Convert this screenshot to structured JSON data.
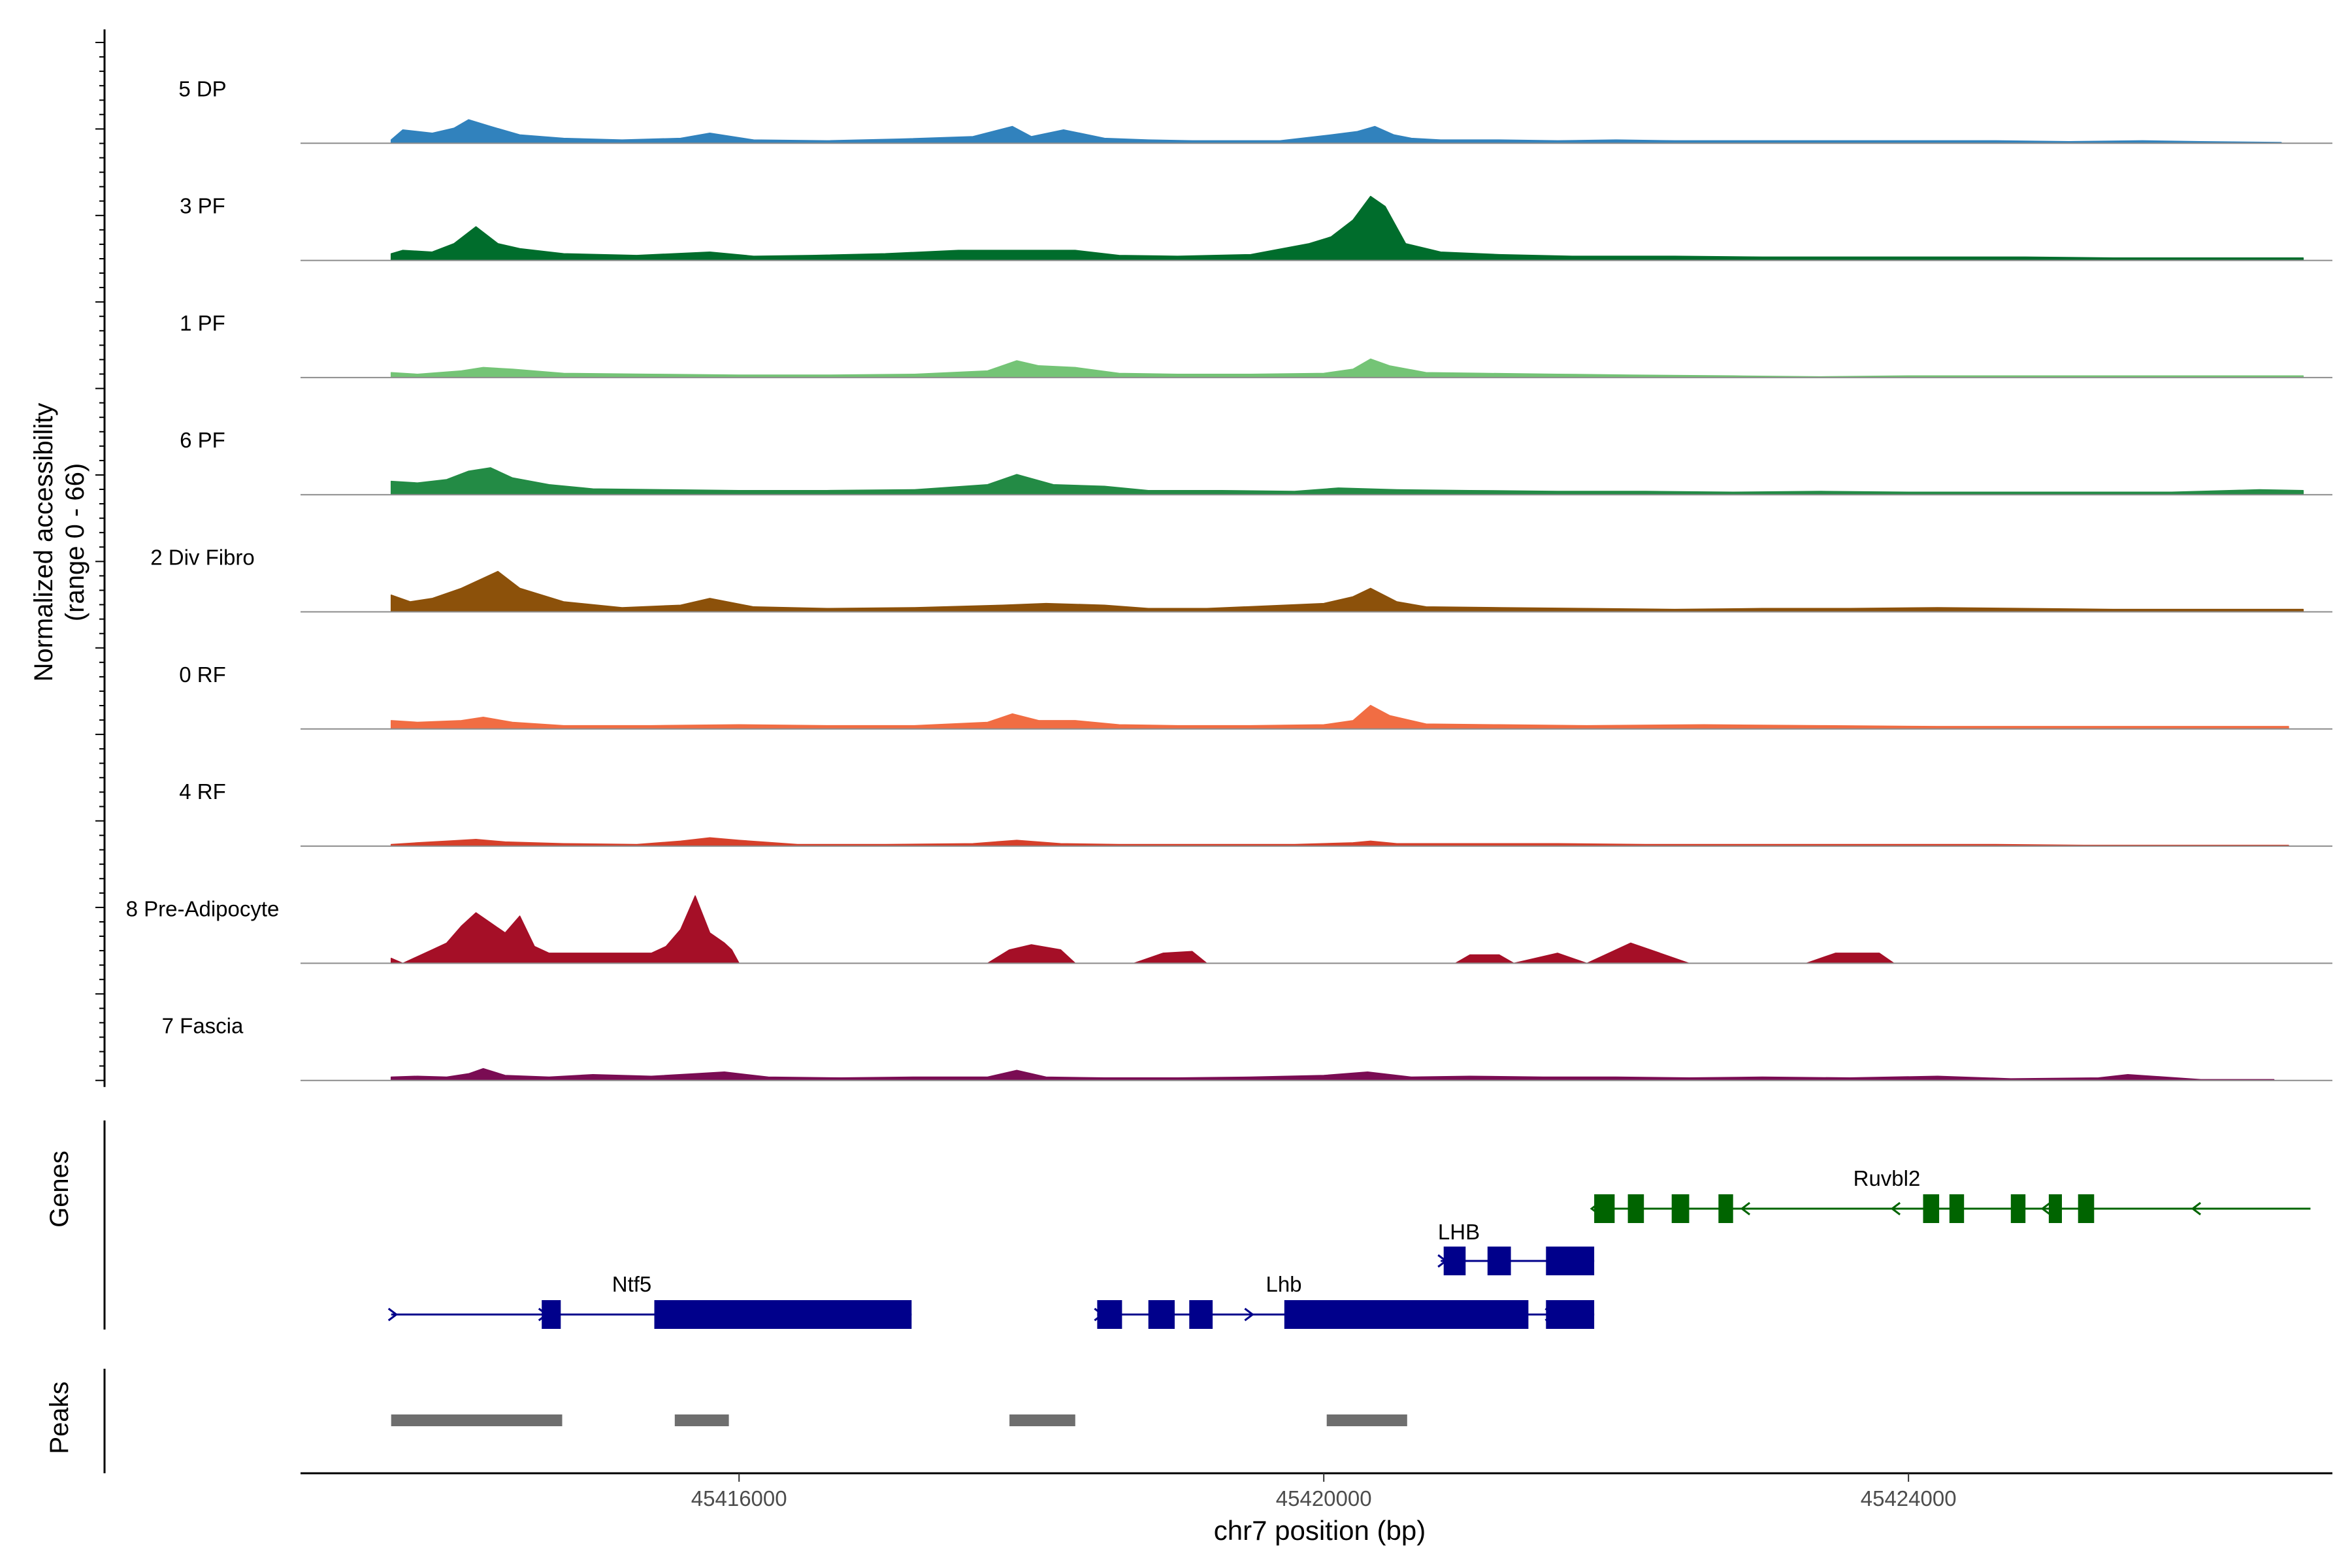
{
  "chart_data": {
    "type": "area",
    "title": "",
    "ylabel_line1": "Normalized accessibility",
    "ylabel_line2": "(range 0 - 66)",
    "xlabel": "chr7 position (bp)",
    "xlim": [
      45413000,
      45426900
    ],
    "ylim": [
      0,
      66
    ],
    "xticks": [
      45416000,
      45420000,
      45424000
    ],
    "xtick_labels": [
      "45416000",
      "45420000",
      "45424000"
    ],
    "grid": false,
    "series": [
      {
        "name": "5 DP",
        "color": "#3182bd",
        "x": [
          45413620,
          45413700,
          45413900,
          45414050,
          45414150,
          45414300,
          45414500,
          45414800,
          45415200,
          45415600,
          45415800,
          45416100,
          45416600,
          45417100,
          45417600,
          45417870,
          45418000,
          45418220,
          45418500,
          45418800,
          45419100,
          45419400,
          45419700,
          45420050,
          45420230,
          45420350,
          45420480,
          45420600,
          45420800,
          45421200,
          45421600,
          45422000,
          45422400,
          45422800,
          45423400,
          45424000,
          45424600,
          45425100,
          45425600,
          45426000,
          45426550
        ],
        "values": [
          2,
          8,
          6,
          9,
          14,
          10,
          5,
          3,
          2,
          3,
          6,
          2,
          1.5,
          2.5,
          4,
          10,
          4,
          8,
          3,
          2,
          1.5,
          1.5,
          1.5,
          5,
          7,
          10,
          5,
          3,
          2,
          2,
          1.5,
          2,
          1.5,
          1.5,
          1.5,
          1.5,
          1.5,
          1,
          1.5,
          1,
          0.5
        ]
      },
      {
        "name": "3 PF",
        "color": "#006d2c",
        "x": [
          45413620,
          45413700,
          45413900,
          45414050,
          45414200,
          45414350,
          45414500,
          45414800,
          45415300,
          45415800,
          45416100,
          45416500,
          45417000,
          45417500,
          45417900,
          45418300,
          45418600,
          45419000,
          45419500,
          45419900,
          45420050,
          45420200,
          45420320,
          45420420,
          45420560,
          45420800,
          45421200,
          45421700,
          45422400,
          45423000,
          45423600,
          45424200,
          45424800,
          45425400,
          45426000,
          45426600,
          45426700
        ],
        "values": [
          4,
          6,
          5,
          10,
          20,
          10,
          7,
          4,
          3,
          5,
          2.5,
          3,
          4,
          6,
          6,
          6,
          3,
          2.5,
          3.5,
          10,
          14,
          24,
          38,
          32,
          10,
          5,
          3.5,
          2.5,
          2.5,
          2,
          2,
          2,
          2,
          1.5,
          1.5,
          1.5,
          1.5
        ]
      },
      {
        "name": "1 PF",
        "color": "#74c476",
        "x": [
          45413620,
          45413800,
          45414100,
          45414250,
          45414450,
          45414800,
          45415400,
          45416000,
          45416600,
          45417200,
          45417700,
          45417900,
          45418050,
          45418300,
          45418600,
          45419000,
          45419500,
          45420000,
          45420200,
          45420320,
          45420450,
          45420700,
          45421100,
          45421600,
          45422100,
          45422800,
          45423400,
          45424000,
          45424700,
          45425400,
          45426100,
          45426700
        ],
        "values": [
          3,
          2,
          4,
          6,
          5,
          2.5,
          2,
          1.5,
          1.5,
          2,
          4,
          10,
          7,
          6,
          2.5,
          2,
          2,
          2.5,
          5,
          11,
          7,
          3,
          2.5,
          2,
          1.5,
          1,
          0.5,
          1,
          1,
          1,
          1,
          1
        ]
      },
      {
        "name": "6 PF",
        "color": "#238b45",
        "x": [
          45413620,
          45413800,
          45414000,
          45414150,
          45414300,
          45414450,
          45414700,
          45415000,
          45415500,
          45416000,
          45416600,
          45417200,
          45417700,
          45417900,
          45418150,
          45418500,
          45418800,
          45419300,
          45419800,
          45420100,
          45420500,
          45421000,
          45421600,
          45422200,
          45422800,
          45423400,
          45424000,
          45424600,
          45425200,
          45425800,
          45426400,
          45426700
        ],
        "values": [
          8,
          7,
          9,
          14,
          16,
          10,
          6,
          3.5,
          3,
          2.5,
          2.5,
          3,
          6,
          12,
          6,
          5,
          2.5,
          2.5,
          2,
          4,
          3,
          2.5,
          2,
          2,
          1.5,
          2,
          1.5,
          1.5,
          1.5,
          1.5,
          3,
          2.5
        ]
      },
      {
        "name": "2 Div Fibro",
        "color": "#8c510a",
        "x": [
          45413620,
          45413750,
          45413900,
          45414100,
          45414250,
          45414350,
          45414500,
          45414800,
          45415200,
          45415600,
          45415800,
          45416100,
          45416600,
          45417200,
          45417800,
          45418100,
          45418500,
          45418800,
          45419200,
          45419600,
          45420000,
          45420200,
          45420320,
          45420500,
          45420700,
          45421200,
          45421800,
          45422400,
          45423000,
          45423600,
          45424200,
          45424800,
          45425400,
          45426000,
          45426700
        ],
        "values": [
          10,
          6,
          8,
          14,
          20,
          24,
          14,
          6,
          2.5,
          4,
          8,
          3,
          2,
          2.5,
          4,
          5,
          4,
          2,
          2,
          3.5,
          5,
          9,
          14,
          6,
          3,
          2.5,
          2,
          1.5,
          2,
          2,
          2.5,
          2,
          1.5,
          1.5,
          1.5
        ]
      },
      {
        "name": "0 RF",
        "color": "#f16d43",
        "x": [
          45413620,
          45413800,
          45414100,
          45414250,
          45414450,
          45414800,
          45415400,
          45416000,
          45416600,
          45417200,
          45417700,
          45417870,
          45418050,
          45418300,
          45418600,
          45419000,
          45419500,
          45420000,
          45420200,
          45420320,
          45420450,
          45420700,
          45421200,
          45421800,
          45422600,
          45423400,
          45424200,
          45425000,
          45425800,
          45426600
        ],
        "values": [
          5,
          4,
          5,
          7,
          4,
          2,
          2,
          2.5,
          2,
          2,
          4,
          9,
          5,
          5,
          2.5,
          2,
          2,
          2.5,
          5,
          14,
          8,
          3,
          2.5,
          2,
          2.5,
          2,
          1.5,
          1.5,
          1.5,
          1.5
        ]
      },
      {
        "name": "4 RF",
        "color": "#d6402a",
        "x": [
          45413620,
          45413800,
          45414000,
          45414200,
          45414400,
          45414800,
          45415300,
          45415600,
          45415800,
          45416000,
          45416400,
          45417000,
          45417600,
          45417900,
          45418200,
          45418600,
          45419200,
          45419800,
          45420200,
          45420320,
          45420500,
          45421000,
          45421600,
          45422200,
          45422800,
          45423400,
          45424000,
          45424600,
          45425200,
          45425800,
          45426600
        ],
        "values": [
          1,
          2,
          3,
          4,
          2.5,
          1.5,
          1,
          3,
          5,
          3.5,
          1,
          1,
          1.5,
          3.5,
          1.5,
          1,
          1,
          1,
          2,
          3,
          1.5,
          1.5,
          1.5,
          1,
          1,
          1,
          1,
          1,
          0.5,
          0.5,
          0.5
        ]
      },
      {
        "name": "8 Pre-Adipocyte",
        "color": "#a50f27",
        "x": [
          45413620,
          45413700,
          45413900,
          45414000,
          45414100,
          45414200,
          45414300,
          45414400,
          45414500,
          45414600,
          45414700,
          45415000,
          45415200,
          45415400,
          45415500,
          45415600,
          45415700,
          45415800,
          45415900,
          45415950,
          45416000,
          45417700,
          45417850,
          45418000,
          45418200,
          45418300,
          45418700,
          45418900,
          45419100,
          45419200,
          45420900,
          45421000,
          45421200,
          45421300,
          45421600,
          45421800,
          45422100,
          45422300,
          45422500,
          45423300,
          45423500,
          45423800,
          45423900
        ],
        "values": [
          3,
          0,
          8,
          12,
          22,
          30,
          24,
          18,
          28,
          10,
          6,
          6,
          6,
          6,
          10,
          20,
          40,
          18,
          12,
          8,
          0,
          0,
          8,
          11,
          8,
          0,
          0,
          6,
          7,
          0,
          0,
          5,
          5,
          0,
          6,
          0,
          12,
          6,
          0,
          0,
          6,
          6,
          0
        ]
      },
      {
        "name": "7 Fascia",
        "color": "#7a0c53",
        "x": [
          45413620,
          45413800,
          45414000,
          45414150,
          45414250,
          45414400,
          45414700,
          45415000,
          45415400,
          45415700,
          45415900,
          45416200,
          45416700,
          45417200,
          45417700,
          45417900,
          45418100,
          45418500,
          45419000,
          45419500,
          45420000,
          45420300,
          45420600,
          45421000,
          45421500,
          45422000,
          45422500,
          45423000,
          45423600,
          45424200,
          45424700,
          45425300,
          45425500,
          45426000,
          45426500
        ],
        "values": [
          2,
          2.5,
          2,
          4,
          7,
          3,
          2,
          3.5,
          2.5,
          4,
          5,
          2,
          1.5,
          2,
          2,
          6,
          2,
          1.5,
          1.5,
          2,
          3,
          5,
          2,
          2.5,
          2,
          2,
          1.5,
          2,
          1.5,
          2.5,
          1,
          1.5,
          3.5,
          0.5,
          0.5
        ]
      }
    ],
    "genes": [
      {
        "name": "Ntf5",
        "strand": "+",
        "color": "#00008b",
        "start": 45413620,
        "end": 45417180,
        "exons": [
          [
            45414650,
            45414780
          ],
          [
            45415420,
            45417180
          ]
        ]
      },
      {
        "name": "Lhb",
        "strand": "+",
        "color": "#00008b",
        "start": 45418450,
        "end": 45421850,
        "exons": [
          [
            45418450,
            45418620
          ],
          [
            45418800,
            45418980
          ],
          [
            45419080,
            45419240
          ],
          [
            45419730,
            45421400
          ],
          [
            45421520,
            45421850
          ]
        ]
      },
      {
        "name": "LHB",
        "strand": "+",
        "color": "#00008b",
        "start": 45420800,
        "end": 45421850,
        "exons": [
          [
            45420820,
            45420970
          ],
          [
            45421120,
            45421280
          ],
          [
            45421520,
            45421850
          ]
        ]
      },
      {
        "name": "Ruvbl2",
        "strand": "-",
        "color": "#006400",
        "start": 45421850,
        "end": 45426750,
        "exons": [
          [
            45421850,
            45421990
          ],
          [
            45422080,
            45422190
          ],
          [
            45422380,
            45422500
          ],
          [
            45422700,
            45422800
          ],
          [
            45424100,
            45424210
          ],
          [
            45424280,
            45424380
          ],
          [
            45424700,
            45424800
          ],
          [
            45424960,
            45425050
          ],
          [
            45425160,
            45425270
          ]
        ]
      }
    ],
    "genes_label": "Genes",
    "peaks_label": "Peaks",
    "peaks": [
      [
        45413620,
        45414790
      ],
      [
        45415560,
        45415930
      ],
      [
        45417850,
        45418300
      ],
      [
        45420020,
        45420570
      ]
    ]
  }
}
